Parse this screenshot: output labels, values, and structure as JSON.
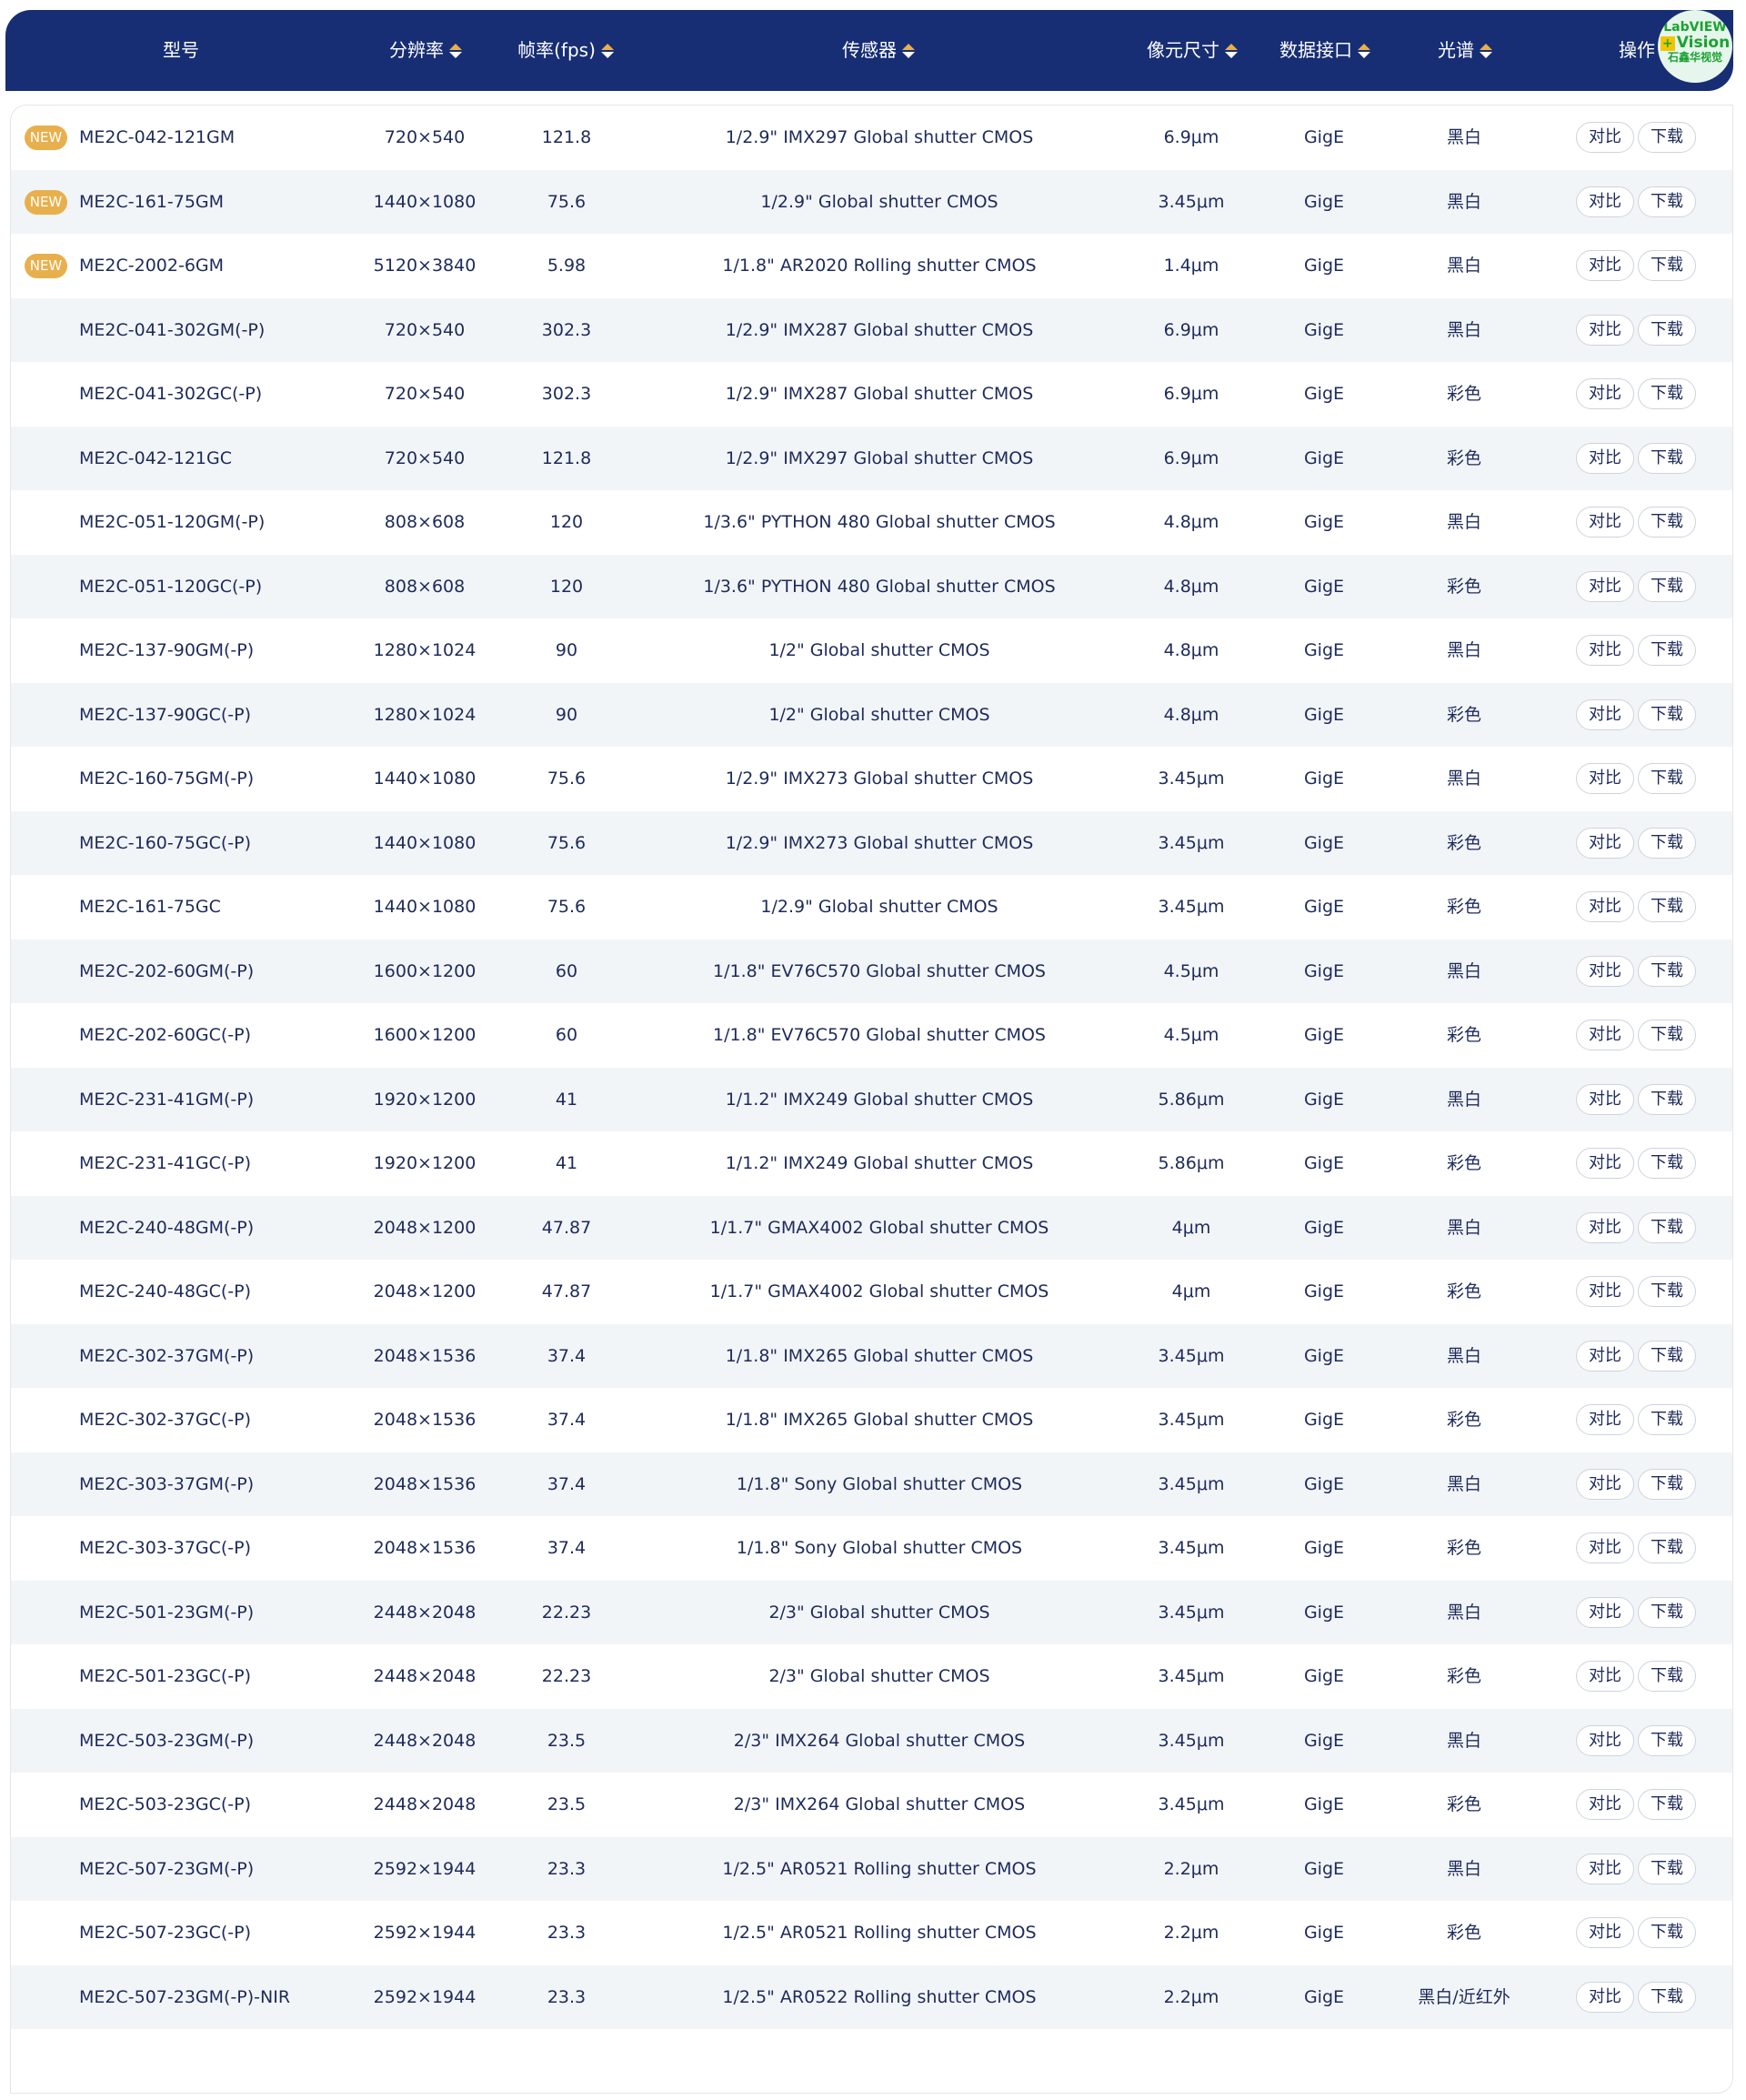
{
  "header": {
    "model": "型号",
    "resolution": "分辨率",
    "fps": "帧率(fps)",
    "sensor": "传感器",
    "pixel": "像元尺寸",
    "interface": "数据接口",
    "spectrum": "光谱",
    "action": "操作"
  },
  "logo": {
    "line1": "LabVIEW",
    "line2": "Vision",
    "line3": "石鑫华视觉"
  },
  "colors": {
    "header_bg": "#172e74",
    "badge": "#e8b04d",
    "alt_row": "#f2f5f8"
  },
  "labels": {
    "new": "NEW",
    "compare": "对比",
    "download": "下载"
  },
  "rows": [
    {
      "new": true,
      "model": "ME2C-042-121GM",
      "resolution": "720×540",
      "fps": "121.8",
      "sensor": "1/2.9\" IMX297 Global shutter CMOS",
      "pixel": "6.9μm",
      "interface": "GigE",
      "spectrum": "黑白"
    },
    {
      "new": true,
      "model": "ME2C-161-75GM",
      "resolution": "1440×1080",
      "fps": "75.6",
      "sensor": "1/2.9\" Global shutter CMOS",
      "pixel": "3.45μm",
      "interface": "GigE",
      "spectrum": "黑白"
    },
    {
      "new": true,
      "model": "ME2C-2002-6GM",
      "resolution": "5120×3840",
      "fps": "5.98",
      "sensor": "1/1.8\" AR2020 Rolling shutter CMOS",
      "pixel": "1.4μm",
      "interface": "GigE",
      "spectrum": "黑白"
    },
    {
      "model": "ME2C-041-302GM(-P)",
      "resolution": "720×540",
      "fps": "302.3",
      "sensor": "1/2.9\" IMX287 Global shutter CMOS",
      "pixel": "6.9μm",
      "interface": "GigE",
      "spectrum": "黑白"
    },
    {
      "model": "ME2C-041-302GC(-P)",
      "resolution": "720×540",
      "fps": "302.3",
      "sensor": "1/2.9\" IMX287 Global shutter CMOS",
      "pixel": "6.9μm",
      "interface": "GigE",
      "spectrum": "彩色"
    },
    {
      "model": "ME2C-042-121GC",
      "resolution": "720×540",
      "fps": "121.8",
      "sensor": "1/2.9\" IMX297 Global shutter CMOS",
      "pixel": "6.9μm",
      "interface": "GigE",
      "spectrum": "彩色"
    },
    {
      "model": "ME2C-051-120GM(-P)",
      "resolution": "808×608",
      "fps": "120",
      "sensor": "1/3.6\" PYTHON 480 Global shutter CMOS",
      "pixel": "4.8μm",
      "interface": "GigE",
      "spectrum": "黑白"
    },
    {
      "model": "ME2C-051-120GC(-P)",
      "resolution": "808×608",
      "fps": "120",
      "sensor": "1/3.6\" PYTHON 480 Global shutter CMOS",
      "pixel": "4.8μm",
      "interface": "GigE",
      "spectrum": "彩色"
    },
    {
      "model": "ME2C-137-90GM(-P)",
      "resolution": "1280×1024",
      "fps": "90",
      "sensor": "1/2\" Global shutter CMOS",
      "pixel": "4.8μm",
      "interface": "GigE",
      "spectrum": "黑白"
    },
    {
      "model": "ME2C-137-90GC(-P)",
      "resolution": "1280×1024",
      "fps": "90",
      "sensor": "1/2\" Global shutter CMOS",
      "pixel": "4.8μm",
      "interface": "GigE",
      "spectrum": "彩色"
    },
    {
      "model": "ME2C-160-75GM(-P)",
      "resolution": "1440×1080",
      "fps": "75.6",
      "sensor": "1/2.9\" IMX273 Global shutter CMOS",
      "pixel": "3.45μm",
      "interface": "GigE",
      "spectrum": "黑白"
    },
    {
      "model": "ME2C-160-75GC(-P)",
      "resolution": "1440×1080",
      "fps": "75.6",
      "sensor": "1/2.9\" IMX273 Global shutter CMOS",
      "pixel": "3.45μm",
      "interface": "GigE",
      "spectrum": "彩色"
    },
    {
      "model": "ME2C-161-75GC",
      "resolution": "1440×1080",
      "fps": "75.6",
      "sensor": "1/2.9\" Global shutter CMOS",
      "pixel": "3.45μm",
      "interface": "GigE",
      "spectrum": "彩色"
    },
    {
      "model": "ME2C-202-60GM(-P)",
      "resolution": "1600×1200",
      "fps": "60",
      "sensor": "1/1.8\" EV76C570 Global shutter CMOS",
      "pixel": "4.5μm",
      "interface": "GigE",
      "spectrum": "黑白"
    },
    {
      "model": "ME2C-202-60GC(-P)",
      "resolution": "1600×1200",
      "fps": "60",
      "sensor": "1/1.8\" EV76C570 Global shutter CMOS",
      "pixel": "4.5μm",
      "interface": "GigE",
      "spectrum": "彩色"
    },
    {
      "model": "ME2C-231-41GM(-P)",
      "resolution": "1920×1200",
      "fps": "41",
      "sensor": "1/1.2\" IMX249 Global shutter CMOS",
      "pixel": "5.86μm",
      "interface": "GigE",
      "spectrum": "黑白"
    },
    {
      "model": "ME2C-231-41GC(-P)",
      "resolution": "1920×1200",
      "fps": "41",
      "sensor": "1/1.2\" IMX249 Global shutter CMOS",
      "pixel": "5.86μm",
      "interface": "GigE",
      "spectrum": "彩色"
    },
    {
      "model": "ME2C-240-48GM(-P)",
      "resolution": "2048×1200",
      "fps": "47.87",
      "sensor": "1/1.7\" GMAX4002 Global shutter CMOS",
      "pixel": "4μm",
      "interface": "GigE",
      "spectrum": "黑白"
    },
    {
      "model": "ME2C-240-48GC(-P)",
      "resolution": "2048×1200",
      "fps": "47.87",
      "sensor": "1/1.7\" GMAX4002 Global shutter CMOS",
      "pixel": "4μm",
      "interface": "GigE",
      "spectrum": "彩色"
    },
    {
      "model": "ME2C-302-37GM(-P)",
      "resolution": "2048×1536",
      "fps": "37.4",
      "sensor": "1/1.8\" IMX265 Global shutter CMOS",
      "pixel": "3.45μm",
      "interface": "GigE",
      "spectrum": "黑白"
    },
    {
      "model": "ME2C-302-37GC(-P)",
      "resolution": "2048×1536",
      "fps": "37.4",
      "sensor": "1/1.8\" IMX265 Global shutter CMOS",
      "pixel": "3.45μm",
      "interface": "GigE",
      "spectrum": "彩色"
    },
    {
      "model": "ME2C-303-37GM(-P)",
      "resolution": "2048×1536",
      "fps": "37.4",
      "sensor": "1/1.8\" Sony Global shutter CMOS",
      "pixel": "3.45μm",
      "interface": "GigE",
      "spectrum": "黑白"
    },
    {
      "model": "ME2C-303-37GC(-P)",
      "resolution": "2048×1536",
      "fps": "37.4",
      "sensor": "1/1.8\" Sony Global shutter CMOS",
      "pixel": "3.45μm",
      "interface": "GigE",
      "spectrum": "彩色"
    },
    {
      "model": "ME2C-501-23GM(-P)",
      "resolution": "2448×2048",
      "fps": "22.23",
      "sensor": "2/3\" Global shutter CMOS",
      "pixel": "3.45μm",
      "interface": "GigE",
      "spectrum": "黑白"
    },
    {
      "model": "ME2C-501-23GC(-P)",
      "resolution": "2448×2048",
      "fps": "22.23",
      "sensor": "2/3\" Global shutter CMOS",
      "pixel": "3.45μm",
      "interface": "GigE",
      "spectrum": "彩色"
    },
    {
      "model": "ME2C-503-23GM(-P)",
      "resolution": "2448×2048",
      "fps": "23.5",
      "sensor": "2/3\" IMX264 Global shutter CMOS",
      "pixel": "3.45μm",
      "interface": "GigE",
      "spectrum": "黑白"
    },
    {
      "model": "ME2C-503-23GC(-P)",
      "resolution": "2448×2048",
      "fps": "23.5",
      "sensor": "2/3\" IMX264 Global shutter CMOS",
      "pixel": "3.45μm",
      "interface": "GigE",
      "spectrum": "彩色"
    },
    {
      "model": "ME2C-507-23GM(-P)",
      "resolution": "2592×1944",
      "fps": "23.3",
      "sensor": "1/2.5\" AR0521 Rolling shutter CMOS",
      "pixel": "2.2μm",
      "interface": "GigE",
      "spectrum": "黑白"
    },
    {
      "model": "ME2C-507-23GC(-P)",
      "resolution": "2592×1944",
      "fps": "23.3",
      "sensor": "1/2.5\" AR0521 Rolling shutter CMOS",
      "pixel": "2.2μm",
      "interface": "GigE",
      "spectrum": "彩色"
    },
    {
      "model": "ME2C-507-23GM(-P)-NIR",
      "resolution": "2592×1944",
      "fps": "23.3",
      "sensor": "1/2.5\" AR0522 Rolling shutter CMOS",
      "pixel": "2.2μm",
      "interface": "GigE",
      "spectrum": "黑白/近红外"
    }
  ]
}
